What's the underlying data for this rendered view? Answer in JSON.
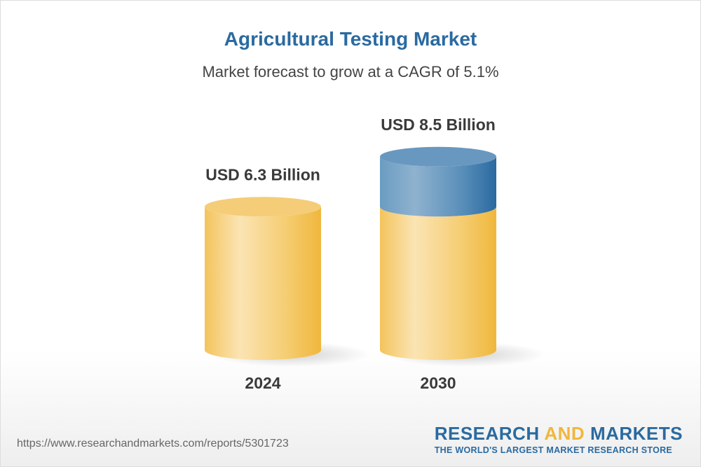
{
  "title": "Agricultural Testing Market",
  "subtitle": "Market forecast to grow at a CAGR of 5.1%",
  "chart_data": {
    "type": "bar",
    "style": "3d-cylinder",
    "categories": [
      "2024",
      "2030"
    ],
    "values": [
      6.3,
      8.5
    ],
    "unit": "USD Billion",
    "data_labels": [
      "USD 6.3 Billion",
      "USD 8.5 Billion"
    ],
    "colors": {
      "base": "#f2bf50",
      "growth": "#2d6ca0"
    }
  },
  "footer": {
    "url": "https://www.researchandmarkets.com/reports/5301723",
    "logo_part1": "RESEARCH ",
    "logo_part2": "AND",
    "logo_part3": " MARKETS",
    "tagline": "THE WORLD'S LARGEST MARKET RESEARCH STORE"
  }
}
